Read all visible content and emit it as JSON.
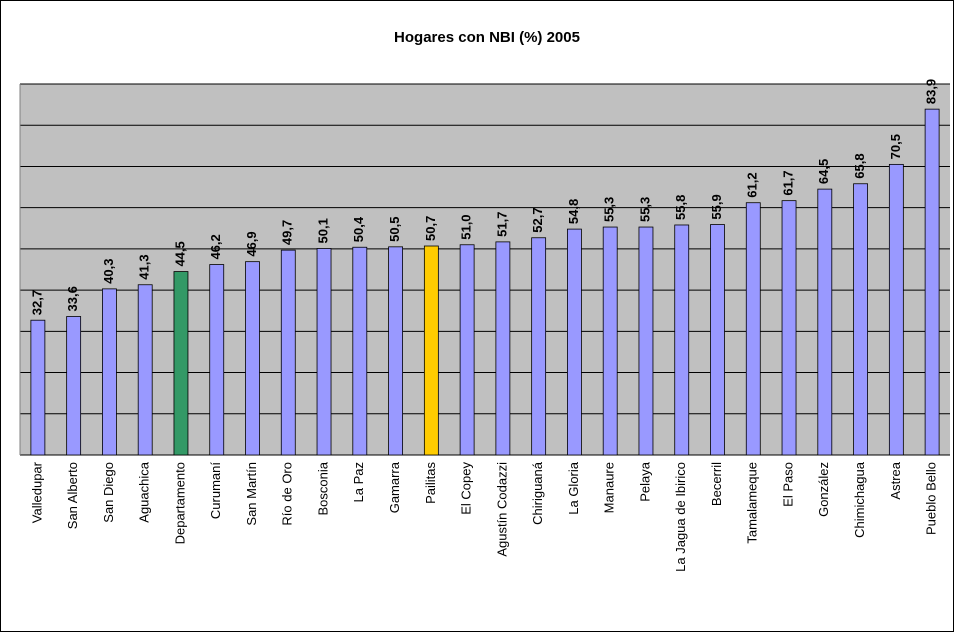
{
  "chart_data": {
    "type": "bar",
    "title": "Hogares con NBI (%) 2005",
    "categories": [
      "Valledupar",
      "San Alberto",
      "San Diego",
      "Aguachica",
      "Departamento",
      "Curumaní",
      "San Martín",
      "Río de Oro",
      "Bosconia",
      "La Paz",
      "Gamarra",
      "Pailitas",
      "El Copey",
      "Agustín Codazzi",
      "Chiriguaná",
      "La Gloria",
      "Manaure",
      "Pelaya",
      "La Jagua de Ibirico",
      "Becerril",
      "Tamalameque",
      "El Paso",
      "González",
      "Chimichagua",
      "Astrea",
      "Pueblo Bello"
    ],
    "values": [
      32.7,
      33.6,
      40.3,
      41.3,
      44.5,
      46.2,
      46.9,
      49.7,
      50.1,
      50.4,
      50.5,
      50.7,
      51.0,
      51.7,
      52.7,
      54.8,
      55.3,
      55.3,
      55.8,
      55.9,
      61.2,
      61.7,
      64.5,
      65.8,
      70.5,
      83.9
    ],
    "value_labels": [
      "32,7",
      "33,6",
      "40,3",
      "41,3",
      "44,5",
      "46,2",
      "46,9",
      "49,7",
      "50,1",
      "50,4",
      "50,5",
      "50,7",
      "51,0",
      "51,7",
      "52,7",
      "54,8",
      "55,3",
      "55,3",
      "55,8",
      "55,9",
      "61,2",
      "61,7",
      "64,5",
      "65,8",
      "70,5",
      "83,9"
    ],
    "colors": [
      "#9999ff",
      "#9999ff",
      "#9999ff",
      "#9999ff",
      "#339966",
      "#9999ff",
      "#9999ff",
      "#9999ff",
      "#9999ff",
      "#9999ff",
      "#9999ff",
      "#ffcc00",
      "#9999ff",
      "#9999ff",
      "#9999ff",
      "#9999ff",
      "#9999ff",
      "#9999ff",
      "#9999ff",
      "#9999ff",
      "#9999ff",
      "#9999ff",
      "#9999ff",
      "#9999ff",
      "#9999ff",
      "#9999ff"
    ],
    "ylim": [
      0,
      90
    ],
    "yticks": [
      0,
      10,
      20,
      30,
      40,
      50,
      60,
      70,
      80,
      90
    ],
    "grid": true
  }
}
